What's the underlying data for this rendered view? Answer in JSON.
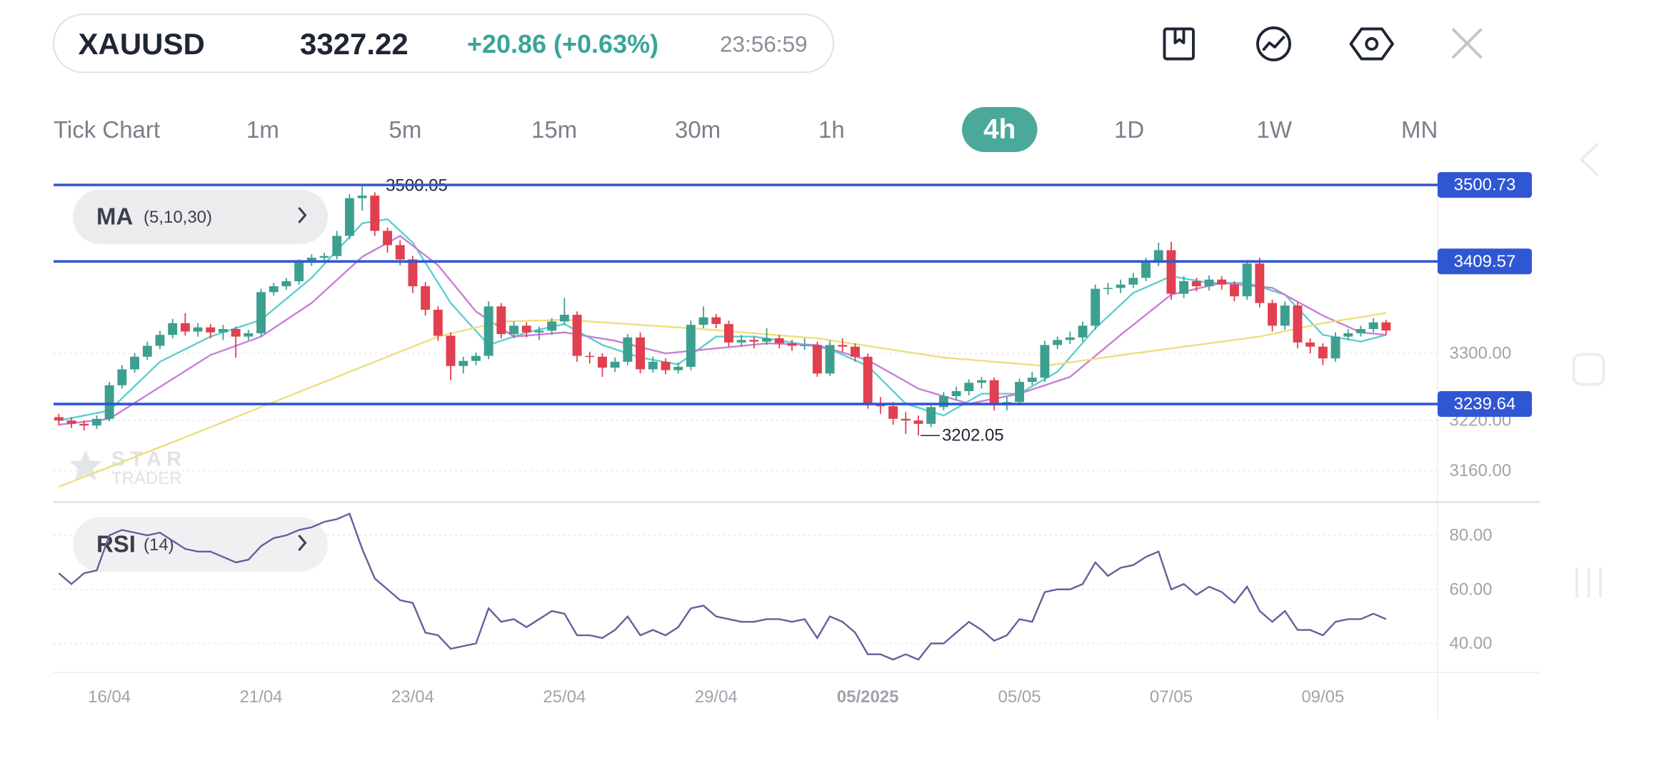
{
  "header": {
    "symbol": "XAUUSD",
    "price": "3327.22",
    "change": "+20.86 (+0.63%)",
    "time": "23:56:59"
  },
  "timeframes": [
    "Tick Chart",
    "1m",
    "5m",
    "15m",
    "30m",
    "1h",
    "4h",
    "1D",
    "1W",
    "MN"
  ],
  "active_timeframe": 6,
  "chart_data": [
    {
      "type": "candlestick",
      "indicator": "MA",
      "indicator_params": "(5,10,30)",
      "watermark": [
        "STAR",
        "TRADER"
      ],
      "up_color": "#3d9f8f",
      "down_color": "#e0404f",
      "level_color": "#3156d3",
      "grid": true,
      "emphasized_category": 64,
      "ylim": [
        3124,
        3517
      ],
      "yticks": [
        {
          "value": 3160,
          "label": "3160.00"
        },
        {
          "value": 3220,
          "label": "3220.00"
        },
        {
          "value": 3300,
          "label": "3300.00"
        }
      ],
      "levels": [
        3500.73,
        3409.57,
        3239.64
      ],
      "categories": [
        null,
        null,
        null,
        null,
        "16/04",
        null,
        null,
        null,
        null,
        null,
        null,
        null,
        null,
        null,
        null,
        null,
        "21/04",
        null,
        null,
        null,
        null,
        null,
        null,
        null,
        null,
        null,
        null,
        null,
        "23/04",
        null,
        null,
        null,
        null,
        null,
        null,
        null,
        null,
        null,
        null,
        null,
        "25/04",
        null,
        null,
        null,
        null,
        null,
        null,
        null,
        null,
        null,
        null,
        null,
        "29/04",
        null,
        null,
        null,
        null,
        null,
        null,
        null,
        null,
        null,
        null,
        null,
        "05/2025",
        null,
        null,
        null,
        null,
        null,
        null,
        null,
        null,
        null,
        null,
        null,
        "05/05",
        null,
        null,
        null,
        null,
        null,
        null,
        null,
        null,
        null,
        null,
        null,
        "07/05",
        null,
        null,
        null,
        null,
        null,
        null,
        null,
        null,
        null,
        null,
        null,
        "09/05",
        null,
        null,
        null,
        null,
        null
      ],
      "open": [
        3224,
        3220,
        3216,
        3214,
        3222,
        3262,
        3281,
        3296,
        3309,
        3322,
        3336,
        3326,
        3331,
        3325,
        3329,
        3320,
        3324,
        3373,
        3380,
        3386,
        3408,
        3414,
        3416,
        3440,
        3485,
        3488,
        3446,
        3429,
        3412,
        3380,
        3352,
        3321,
        3285,
        3291,
        3297,
        3356,
        3323,
        3333,
        3325,
        3327,
        3338,
        3346,
        3297,
        3296,
        3283,
        3290,
        3319,
        3281,
        3290,
        3280,
        3284,
        3334,
        3343,
        3335,
        3313,
        3316,
        3314,
        3318,
        3312,
        3309,
        3310,
        3276,
        3310,
        3308,
        3296,
        3240,
        3237,
        3222,
        3220,
        3216,
        3236,
        3249,
        3255,
        3265,
        3268,
        3238,
        3242,
        3266,
        3271,
        3310,
        3316,
        3319,
        3333,
        3377,
        3378,
        3382,
        3390,
        3408,
        3423,
        3371,
        3386,
        3380,
        3388,
        3382,
        3368,
        3407,
        3360,
        3333,
        3357,
        3313,
        3308,
        3294,
        3320,
        3324,
        3329,
        3337
      ],
      "high": [
        3228,
        3224,
        3220,
        3226,
        3266,
        3286,
        3300,
        3314,
        3327,
        3341,
        3348,
        3336,
        3335,
        3334,
        3332,
        3328,
        3377,
        3384,
        3390,
        3412,
        3418,
        3420,
        3446,
        3490,
        3500.05,
        3492,
        3450,
        3435,
        3416,
        3385,
        3356,
        3325,
        3296,
        3301,
        3362,
        3360,
        3338,
        3337,
        3332,
        3342,
        3366,
        3350,
        3302,
        3300,
        3295,
        3323,
        3325,
        3296,
        3294,
        3289,
        3339,
        3356,
        3347,
        3339,
        3322,
        3320,
        3330,
        3322,
        3316,
        3318,
        3314,
        3315,
        3318,
        3312,
        3300,
        3248,
        3242,
        3230,
        3226,
        3240,
        3254,
        3260,
        3269,
        3272,
        3271,
        3248,
        3270,
        3278,
        3315,
        3320,
        3326,
        3338,
        3382,
        3384,
        3388,
        3396,
        3414,
        3432,
        3433,
        3392,
        3390,
        3393,
        3392,
        3386,
        3411,
        3414,
        3364,
        3362,
        3361,
        3318,
        3312,
        3325,
        3329,
        3333,
        3342,
        3340
      ],
      "low": [
        3214,
        3211,
        3208,
        3210,
        3219,
        3258,
        3277,
        3292,
        3305,
        3318,
        3321,
        3320,
        3318,
        3316,
        3295,
        3316,
        3320,
        3369,
        3376,
        3382,
        3404,
        3410,
        3412,
        3436,
        3470,
        3440,
        3420,
        3405,
        3372,
        3345,
        3315,
        3268,
        3276,
        3286,
        3293,
        3318,
        3318,
        3319,
        3316,
        3322,
        3334,
        3290,
        3288,
        3272,
        3278,
        3286,
        3276,
        3277,
        3275,
        3276,
        3280,
        3330,
        3330,
        3308,
        3308,
        3306,
        3310,
        3306,
        3303,
        3304,
        3272,
        3273,
        3302,
        3290,
        3234,
        3228,
        3215,
        3204,
        3202.05,
        3212,
        3232,
        3244,
        3250,
        3258,
        3232,
        3232,
        3238,
        3262,
        3266,
        3305,
        3311,
        3314,
        3328,
        3370,
        3372,
        3378,
        3386,
        3404,
        3364,
        3366,
        3374,
        3375,
        3376,
        3362,
        3364,
        3355,
        3326,
        3328,
        3306,
        3300,
        3286,
        3290,
        3316,
        3320,
        3325,
        3322
      ],
      "close": [
        3220,
        3216,
        3214,
        3222,
        3262,
        3281,
        3296,
        3309,
        3322,
        3336,
        3326,
        3331,
        3325,
        3329,
        3320,
        3324,
        3373,
        3380,
        3386,
        3408,
        3414,
        3416,
        3440,
        3485,
        3488,
        3446,
        3429,
        3412,
        3380,
        3352,
        3321,
        3285,
        3291,
        3297,
        3356,
        3323,
        3333,
        3325,
        3327,
        3338,
        3346,
        3297,
        3296,
        3283,
        3290,
        3319,
        3281,
        3290,
        3280,
        3284,
        3334,
        3343,
        3335,
        3313,
        3316,
        3314,
        3318,
        3312,
        3309,
        3310,
        3276,
        3310,
        3308,
        3296,
        3240,
        3237,
        3222,
        3220,
        3216,
        3236,
        3249,
        3255,
        3265,
        3268,
        3238,
        3242,
        3266,
        3271,
        3310,
        3316,
        3319,
        3333,
        3377,
        3378,
        3382,
        3390,
        3408,
        3423,
        3371,
        3386,
        3380,
        3388,
        3382,
        3368,
        3407,
        3360,
        3333,
        3357,
        3313,
        3308,
        3294,
        3320,
        3324,
        3329,
        3337,
        3327.22
      ],
      "series": [
        {
          "color": "#5ccfd0",
          "x": [
            0,
            4,
            8,
            12,
            16,
            20,
            24,
            26,
            28,
            31,
            34,
            37,
            40,
            43,
            46,
            49,
            52,
            55,
            58,
            61,
            64,
            67,
            70,
            73,
            76,
            79,
            82,
            85,
            88,
            91,
            94,
            97,
            100,
            103,
            105
          ],
          "values": [
            3220,
            3232,
            3290,
            3320,
            3340,
            3390,
            3455,
            3460,
            3432,
            3360,
            3310,
            3325,
            3335,
            3310,
            3295,
            3287,
            3320,
            3320,
            3313,
            3305,
            3285,
            3240,
            3226,
            3252,
            3252,
            3278,
            3330,
            3372,
            3392,
            3384,
            3384,
            3370,
            3322,
            3314,
            3322
          ]
        },
        {
          "color": "#c77fd6",
          "x": [
            0,
            4,
            8,
            12,
            16,
            20,
            24,
            27,
            30,
            33,
            36,
            40,
            44,
            48,
            52,
            56,
            60,
            64,
            68,
            72,
            76,
            80,
            84,
            88,
            92,
            96,
            100,
            103,
            105
          ],
          "values": [
            3215,
            3222,
            3260,
            3298,
            3320,
            3360,
            3415,
            3440,
            3405,
            3350,
            3320,
            3325,
            3315,
            3300,
            3306,
            3312,
            3310,
            3292,
            3258,
            3240,
            3252,
            3272,
            3322,
            3370,
            3384,
            3378,
            3345,
            3325,
            3322
          ]
        },
        {
          "color": "#ecdf7a",
          "x": [
            0,
            10,
            20,
            30,
            35,
            40,
            50,
            60,
            70,
            78,
            85,
            95,
            100,
            105
          ],
          "values": [
            3141,
            3200,
            3260,
            3320,
            3338,
            3340,
            3330,
            3318,
            3295,
            3285,
            3300,
            3320,
            3336,
            3348
          ]
        }
      ]
    },
    {
      "type": "line",
      "indicator": "RSI",
      "indicator_params": "(14)",
      "color": "#6f5a9c",
      "grid": true,
      "ylim": [
        29.3,
        91.9
      ],
      "yticks": [
        {
          "value": 80,
          "label": "80.00"
        },
        {
          "value": 60,
          "label": "60.00"
        },
        {
          "value": 40,
          "label": "40.00"
        }
      ],
      "values": [
        66,
        62,
        66,
        67,
        80,
        82,
        81,
        80,
        81,
        78,
        75,
        74,
        74,
        72,
        70,
        71,
        76,
        79,
        80,
        82,
        83,
        85,
        86,
        88,
        75,
        64,
        60,
        56,
        55,
        44,
        43,
        38,
        39,
        40,
        53,
        48,
        49,
        46,
        49,
        52,
        51,
        43,
        43,
        42,
        45,
        50,
        43,
        45,
        43,
        46,
        53,
        54,
        50,
        49,
        48,
        48,
        49,
        49,
        48,
        49,
        42,
        50,
        48,
        44,
        36,
        36,
        34,
        36,
        34,
        40,
        40,
        44,
        48,
        45,
        41,
        43,
        49,
        48,
        59,
        60,
        60,
        62,
        70,
        65,
        68,
        69,
        72,
        74,
        60,
        62,
        58,
        61,
        59,
        55,
        61,
        52,
        48,
        52,
        45,
        45,
        43,
        48,
        49,
        49,
        51,
        49
      ]
    }
  ]
}
